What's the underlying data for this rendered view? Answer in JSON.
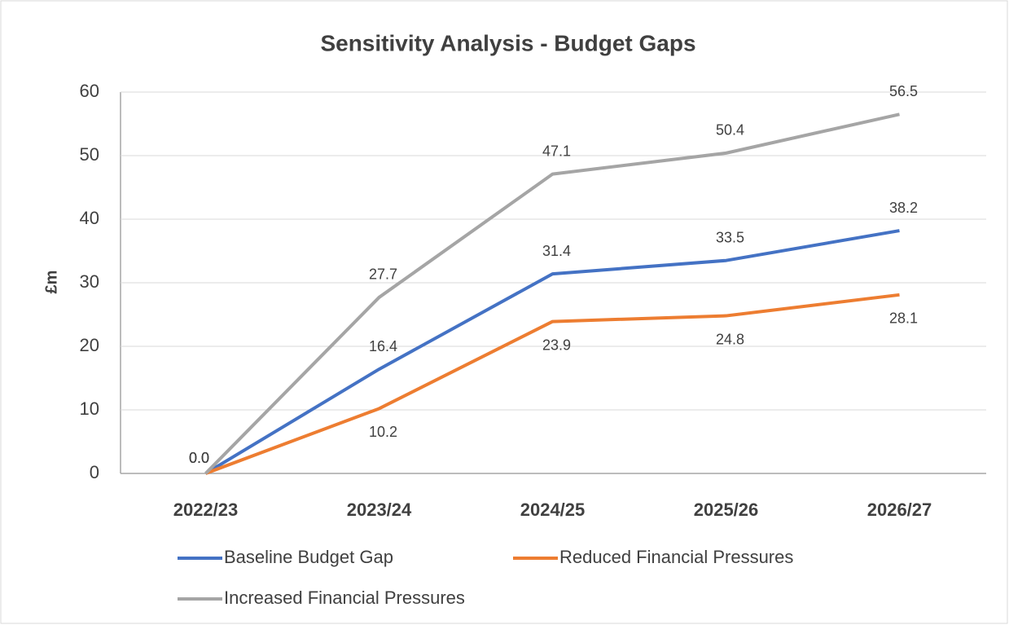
{
  "chart_data": {
    "type": "line",
    "title": "Sensitivity Analysis - Budget Gaps",
    "ylabel": "£m",
    "categories": [
      "2022/23",
      "2023/24",
      "2024/25",
      "2025/26",
      "2026/27"
    ],
    "series": [
      {
        "name": "Baseline Budget Gap",
        "color": "#4472c4",
        "values": [
          0,
          16.4,
          31.4,
          33.5,
          38.2
        ],
        "value_labels": [
          "0.0",
          "16.4",
          "31.4",
          "33.5",
          "38.2"
        ]
      },
      {
        "name": "Reduced Financial Pressures",
        "color": "#ed7d31",
        "values": [
          0,
          10.2,
          23.9,
          24.8,
          28.1
        ],
        "value_labels": [
          "0.0",
          "10.2",
          "23.9",
          "24.8",
          "28.1"
        ]
      },
      {
        "name": "Increased Financial Pressures",
        "color": "#a5a5a5",
        "values": [
          0,
          27.7,
          47.1,
          50.4,
          56.5
        ],
        "value_labels": [
          "0.0",
          "27.7",
          "47.1",
          "50.4",
          "56.5"
        ]
      }
    ],
    "ylim": [
      0,
      60
    ],
    "yticks": [
      0,
      10,
      20,
      30,
      40,
      50,
      60
    ],
    "grid": true,
    "legend": "bottom"
  }
}
